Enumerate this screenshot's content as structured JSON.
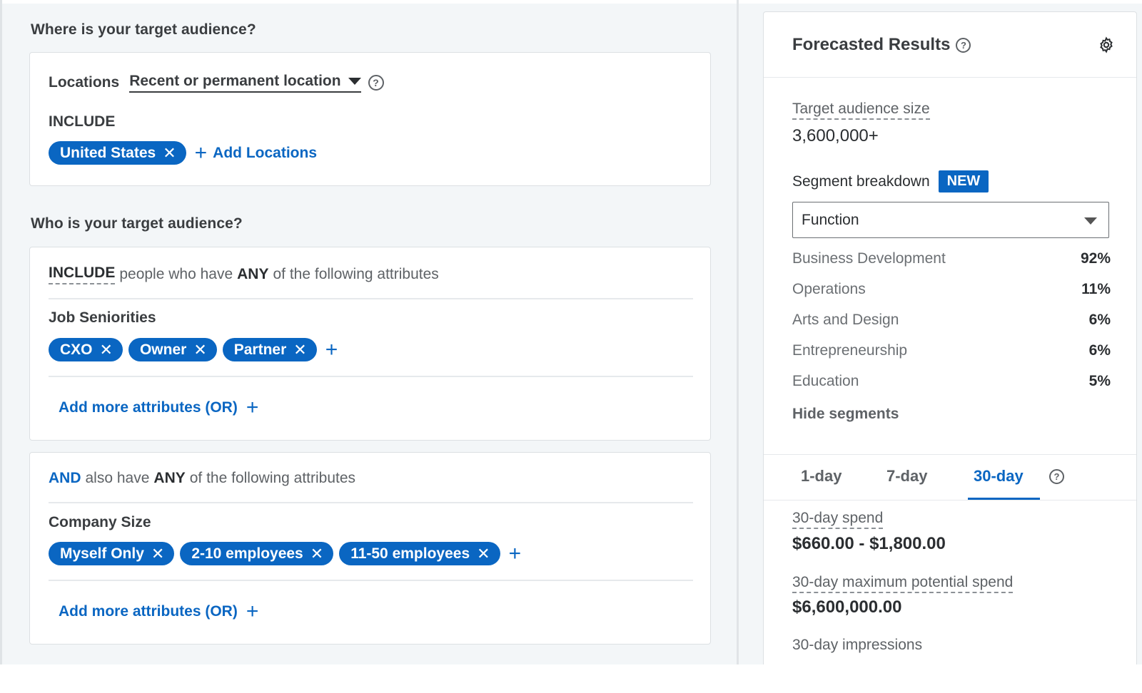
{
  "location_section": {
    "title": "Where is your target audience?",
    "locations_label": "Locations",
    "location_type": "Recent or permanent location",
    "include_label": "INCLUDE",
    "chips": [
      "United States"
    ],
    "add_locations": "Add Locations"
  },
  "audience_section": {
    "title": "Who is your target audience?",
    "include_group": {
      "keyword": "INCLUDE",
      "text_a": "people who have",
      "any": "ANY",
      "text_b": "of the following attributes",
      "attribute_label": "Job Seniorities",
      "chips": [
        "CXO",
        "Owner",
        "Partner"
      ],
      "add_more": "Add more attributes (OR)"
    },
    "and_group": {
      "keyword": "AND",
      "text_a": "also have",
      "any": "ANY",
      "text_b": "of the following attributes",
      "attribute_label": "Company Size",
      "chips": [
        "Myself Only",
        "2-10 employees",
        "11-50 employees"
      ],
      "add_more": "Add more attributes (OR)"
    }
  },
  "forecast": {
    "title": "Forecasted Results",
    "target_audience_label": "Target audience size",
    "target_audience_value": "3,600,000+",
    "segment_label": "Segment breakdown",
    "segment_badge": "NEW",
    "segment_select": "Function",
    "segments": [
      {
        "name": "Business Development",
        "pct": "92%"
      },
      {
        "name": "Operations",
        "pct": "11%"
      },
      {
        "name": "Arts and Design",
        "pct": "6%"
      },
      {
        "name": "Entrepreneurship",
        "pct": "6%"
      },
      {
        "name": "Education",
        "pct": "5%"
      }
    ],
    "hide_segments": "Hide segments",
    "tabs": [
      "1-day",
      "7-day",
      "30-day"
    ],
    "active_tab": "30-day",
    "spend_label": "30-day spend",
    "spend_value": "$660.00 - $1,800.00",
    "max_spend_label": "30-day maximum potential spend",
    "max_spend_value": "$6,600,000.00",
    "impressions_label": "30-day impressions"
  },
  "icons": {
    "remove": "close-icon",
    "add": "plus-icon",
    "help": "help-circle-icon",
    "settings": "gear-icon",
    "dropdown": "caret-down-icon"
  },
  "colors": {
    "accent": "#0a66c2",
    "background": "#f3f6f8"
  }
}
